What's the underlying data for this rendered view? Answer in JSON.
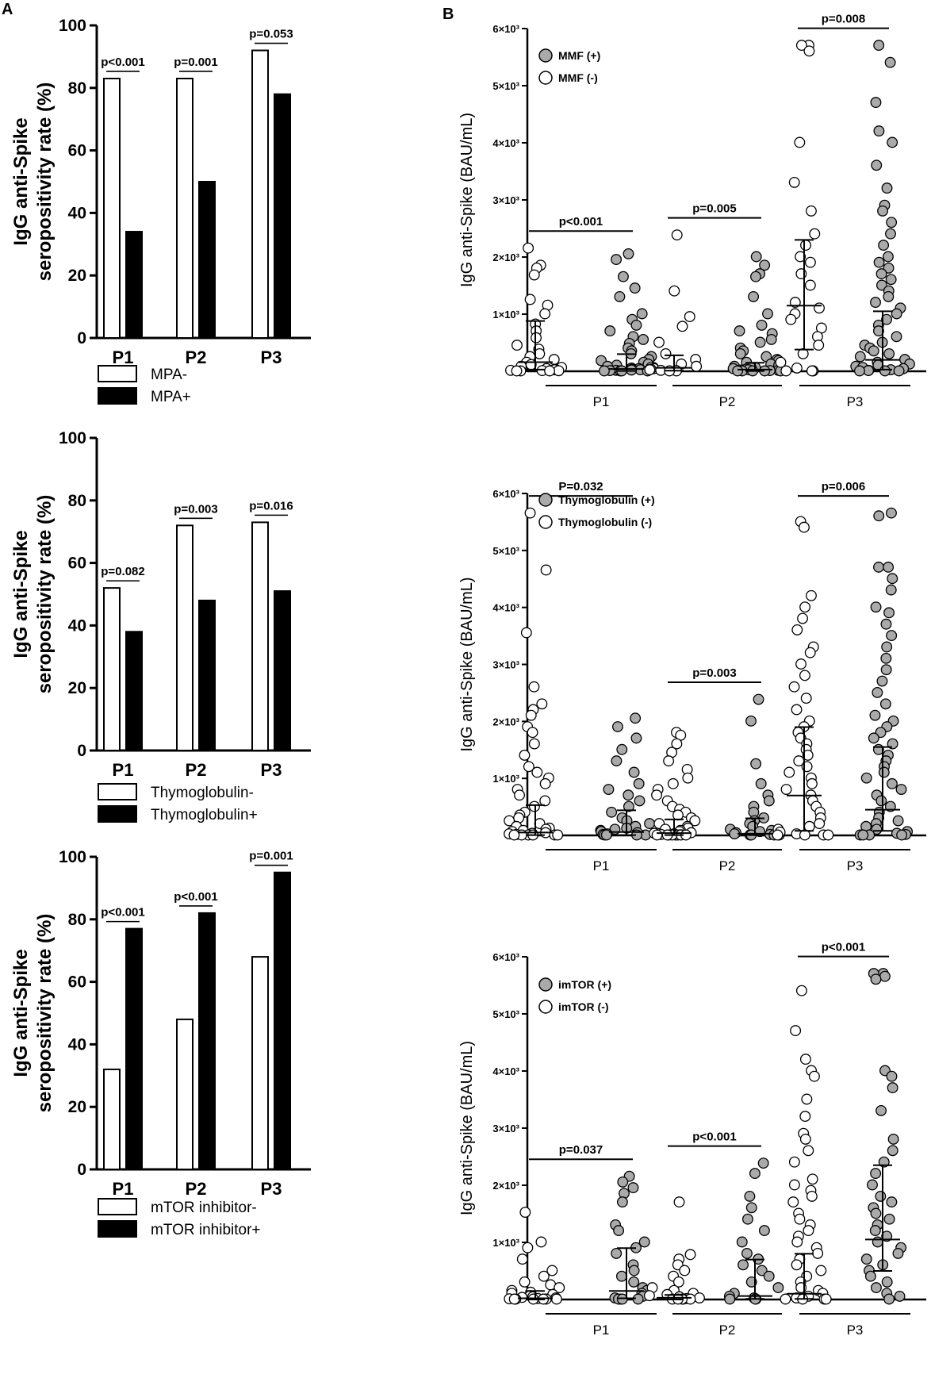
{
  "panel_labels": {
    "a": "A",
    "b": "B"
  },
  "chart_data": [
    {
      "type": "bar",
      "panel": "A",
      "ylabel_line1": "IgG anti-Spike",
      "ylabel_line2": "seropositivity rate (%)",
      "categories": [
        "P1",
        "P2",
        "P3"
      ],
      "yticks": [
        "0",
        "20",
        "40",
        "60",
        "80",
        "100"
      ],
      "ylim": [
        0,
        100
      ],
      "series": [
        {
          "name": "MPA-",
          "color": "#ffffff",
          "values": [
            83,
            83,
            92
          ]
        },
        {
          "name": "MPA+",
          "color": "#000000",
          "values": [
            34,
            50,
            78
          ]
        }
      ],
      "pvalues": [
        "p<0.001",
        "p=0.001",
        "p=0.053"
      ],
      "legend": [
        "MPA-",
        "MPA+"
      ]
    },
    {
      "type": "bar",
      "panel": "A",
      "ylabel_line1": "IgG anti-Spike",
      "ylabel_line2": "seropositivity rate (%)",
      "categories": [
        "P1",
        "P2",
        "P3"
      ],
      "yticks": [
        "0",
        "20",
        "40",
        "60",
        "80",
        "100"
      ],
      "ylim": [
        0,
        100
      ],
      "series": [
        {
          "name": "Thymoglobulin-",
          "color": "#ffffff",
          "values": [
            52,
            72,
            73
          ]
        },
        {
          "name": "Thymoglobulin+",
          "color": "#000000",
          "values": [
            38,
            48,
            51
          ]
        }
      ],
      "pvalues": [
        "p=0.082",
        "p=0.003",
        "p=0.016"
      ],
      "legend": [
        "Thymoglobulin-",
        "Thymoglobulin+"
      ]
    },
    {
      "type": "bar",
      "panel": "A",
      "ylabel_line1": "IgG anti-Spike",
      "ylabel_line2": "seropositivity rate (%)",
      "categories": [
        "P1",
        "P2",
        "P3"
      ],
      "yticks": [
        "0",
        "20",
        "40",
        "60",
        "80",
        "100"
      ],
      "ylim": [
        0,
        100
      ],
      "series": [
        {
          "name": "mTOR inhibitor-",
          "color": "#ffffff",
          "values": [
            32,
            48,
            68
          ]
        },
        {
          "name": "mTOR inhibitor+",
          "color": "#000000",
          "values": [
            77,
            82,
            95
          ]
        }
      ],
      "pvalues": [
        "p<0.001",
        "p<0.001",
        "p=0.001"
      ],
      "legend": [
        "mTOR inhibitor-",
        "mTOR inhibitor+"
      ]
    },
    {
      "type": "scatter",
      "panel": "B",
      "ylabel": "IgG anti-Spike (BAU/mL)",
      "ylim": [
        0,
        6000
      ],
      "yticks": [
        "0",
        "1×10³",
        "2×10³",
        "3×10³",
        "4×10³",
        "5×10³",
        "6×10³"
      ],
      "categories": [
        "P1",
        "P2",
        "P3"
      ],
      "legend": [
        {
          "label": "MMF (+)",
          "fill": "#aaaaaa"
        },
        {
          "label": "MMF (-)",
          "fill": "#ffffff"
        }
      ],
      "pvalues": [
        "p<0.001",
        "p=0.005",
        "p=0.008"
      ],
      "groups": [
        {
          "category": "P1",
          "fill": "#ffffff",
          "median": 160,
          "iqr": [
            30,
            880
          ],
          "values": [
            2150,
            1850,
            1800,
            1680,
            1250,
            1150,
            1000,
            820,
            700,
            580,
            450,
            380,
            300,
            250,
            200,
            150,
            110,
            80,
            60,
            40,
            30,
            20,
            10,
            5,
            3,
            0,
            0,
            0
          ]
        },
        {
          "category": "P1",
          "fill": "#aaaaaa",
          "median": 40,
          "iqr": [
            5,
            300
          ],
          "values": [
            2050,
            1950,
            1650,
            1450,
            1300,
            1000,
            900,
            800,
            700,
            600,
            550,
            480,
            400,
            350,
            300,
            250,
            200,
            180,
            150,
            120,
            100,
            80,
            60,
            50,
            40,
            30,
            20,
            15,
            10,
            5,
            0,
            0,
            0,
            0
          ]
        },
        {
          "category": "P2",
          "fill": "#ffffff",
          "median": 60,
          "iqr": [
            10,
            280
          ],
          "values": [
            2380,
            1400,
            950,
            780,
            500,
            300,
            200,
            120,
            80,
            60,
            40,
            30,
            20,
            10,
            5,
            0,
            0
          ]
        },
        {
          "category": "P2",
          "fill": "#aaaaaa",
          "median": 30,
          "iqr": [
            5,
            150
          ],
          "values": [
            2000,
            1850,
            1700,
            1650,
            1300,
            1000,
            800,
            700,
            650,
            550,
            500,
            400,
            350,
            300,
            250,
            200,
            180,
            150,
            120,
            100,
            80,
            60,
            50,
            40,
            30,
            20,
            15,
            10,
            5,
            0,
            0,
            0,
            0,
            0
          ]
        },
        {
          "category": "P3",
          "fill": "#ffffff",
          "median": 1150,
          "iqr": [
            380,
            2300
          ],
          "values": [
            5700,
            5700,
            5600,
            4000,
            3300,
            2800,
            2400,
            2200,
            2000,
            1900,
            1700,
            1500,
            1200,
            1100,
            1000,
            900,
            750,
            600,
            450,
            300,
            150,
            50,
            0,
            0,
            0
          ]
        },
        {
          "category": "P3",
          "fill": "#aaaaaa",
          "median": 200,
          "iqr": [
            30,
            1050
          ],
          "values": [
            5700,
            5400,
            4700,
            4200,
            4000,
            3600,
            3200,
            2900,
            2800,
            2600,
            2400,
            2200,
            2000,
            1900,
            1800,
            1700,
            1600,
            1500,
            1400,
            1300,
            1200,
            1100,
            1000,
            900,
            800,
            700,
            600,
            500,
            450,
            400,
            350,
            300,
            250,
            200,
            150,
            120,
            100,
            80,
            60,
            40,
            20,
            10,
            5,
            0,
            0,
            0
          ]
        }
      ]
    },
    {
      "type": "scatter",
      "panel": "B",
      "ylabel": "IgG anti-Spike (BAU/mL)",
      "ylim": [
        0,
        6000
      ],
      "yticks": [
        "0",
        "1×10³",
        "2×10³",
        "3×10³",
        "4×10³",
        "5×10³",
        "6×10³"
      ],
      "categories": [
        "P1",
        "P2",
        "P3"
      ],
      "legend": [
        {
          "label": "Thymoglobulin (+)",
          "fill": "#aaaaaa"
        },
        {
          "label": "Thymoglobulin (-)",
          "fill": "#ffffff"
        }
      ],
      "pvalues": [
        "P=0.032",
        "p=0.003",
        "p=0.006"
      ],
      "groups": [
        {
          "category": "P1",
          "fill": "#ffffff",
          "median": 50,
          "iqr": [
            5,
            530
          ],
          "values": [
            5650,
            4650,
            3550,
            2600,
            2300,
            2200,
            2100,
            1900,
            1800,
            1600,
            1400,
            1200,
            1100,
            1000,
            900,
            800,
            700,
            600,
            500,
            400,
            350,
            300,
            250,
            200,
            150,
            120,
            100,
            80,
            60,
            40,
            30,
            20,
            10,
            5,
            0,
            0,
            0,
            0,
            0,
            0
          ]
        },
        {
          "category": "P1",
          "fill": "#aaaaaa",
          "median": 60,
          "iqr": [
            5,
            440
          ],
          "values": [
            2050,
            1900,
            1700,
            1500,
            1300,
            1100,
            900,
            800,
            700,
            600,
            500,
            400,
            300,
            250,
            200,
            150,
            120,
            100,
            80,
            60,
            40,
            20,
            10,
            0,
            0,
            0,
            0
          ]
        },
        {
          "category": "P2",
          "fill": "#ffffff",
          "median": 40,
          "iqr": [
            5,
            280
          ],
          "values": [
            1800,
            1750,
            1600,
            1450,
            1300,
            1150,
            1000,
            900,
            800,
            700,
            600,
            500,
            450,
            400,
            350,
            300,
            250,
            200,
            150,
            120,
            100,
            80,
            60,
            40,
            30,
            20,
            10,
            5,
            0,
            0,
            0,
            0,
            0,
            0,
            0,
            0
          ]
        },
        {
          "category": "P2",
          "fill": "#aaaaaa",
          "median": 30,
          "iqr": [
            5,
            300
          ],
          "values": [
            2380,
            2000,
            1250,
            900,
            700,
            600,
            500,
            400,
            300,
            250,
            200,
            150,
            100,
            80,
            60,
            40,
            20,
            10,
            0,
            0,
            0,
            0
          ]
        },
        {
          "category": "P3",
          "fill": "#ffffff",
          "median": 700,
          "iqr": [
            80,
            1900
          ],
          "values": [
            5500,
            5400,
            4200,
            4000,
            3800,
            3600,
            3300,
            3200,
            3000,
            2800,
            2600,
            2400,
            2200,
            2000,
            1900,
            1800,
            1700,
            1600,
            1500,
            1400,
            1300,
            1200,
            1100,
            1000,
            900,
            800,
            700,
            600,
            500,
            400,
            300,
            200,
            150,
            100,
            50,
            20,
            0,
            0,
            0,
            0
          ]
        },
        {
          "category": "P3",
          "fill": "#aaaaaa",
          "median": 450,
          "iqr": [
            80,
            1550
          ],
          "values": [
            5650,
            5600,
            4700,
            4700,
            4500,
            4300,
            4000,
            3900,
            3700,
            3500,
            3300,
            3100,
            2900,
            2700,
            2500,
            2300,
            2100,
            2000,
            1900,
            1800,
            1700,
            1600,
            1500,
            1400,
            1300,
            1200,
            1100,
            1000,
            900,
            800,
            700,
            600,
            500,
            400,
            300,
            250,
            200,
            150,
            100,
            60,
            30,
            10,
            0,
            0,
            0,
            0
          ]
        }
      ]
    },
    {
      "type": "scatter",
      "panel": "B",
      "ylabel": "IgG anti-Spike (BAU/mL)",
      "ylim": [
        0,
        6000
      ],
      "yticks": [
        "0",
        "1×10³",
        "2×10³",
        "3×10³",
        "4×10³",
        "5×10³",
        "6×10³"
      ],
      "categories": [
        "P1",
        "P2",
        "P3"
      ],
      "legend": [
        {
          "label": "imTOR (+)",
          "fill": "#aaaaaa"
        },
        {
          "label": "imTOR (-)",
          "fill": "#ffffff"
        }
      ],
      "pvalues": [
        "p=0.037",
        "p<0.001",
        "p<0.001"
      ],
      "groups": [
        {
          "category": "P1",
          "fill": "#ffffff",
          "median": 20,
          "iqr": [
            0,
            150
          ],
          "values": [
            1520,
            1000,
            900,
            700,
            500,
            400,
            300,
            250,
            200,
            150,
            120,
            100,
            80,
            60,
            40,
            30,
            20,
            10,
            5,
            0,
            0,
            0,
            0,
            0,
            0
          ]
        },
        {
          "category": "P1",
          "fill": "#aaaaaa",
          "median": 150,
          "iqr": [
            20,
            900
          ],
          "values": [
            2150,
            2050,
            1950,
            1850,
            1700,
            1300,
            1200,
            1000,
            900,
            800,
            600,
            500,
            400,
            300,
            200,
            150,
            100,
            50,
            20,
            0,
            0,
            0,
            0
          ]
        },
        {
          "category": "P2",
          "fill": "#ffffff",
          "median": 30,
          "iqr": [
            0,
            80
          ],
          "values": [
            1700,
            780,
            700,
            600,
            500,
            400,
            300,
            200,
            150,
            100,
            80,
            60,
            40,
            20,
            10,
            0,
            0,
            0,
            0,
            0
          ]
        },
        {
          "category": "P2",
          "fill": "#aaaaaa",
          "median": 60,
          "iqr": [
            10,
            700
          ],
          "values": [
            2380,
            2200,
            1800,
            1600,
            1400,
            1200,
            1000,
            800,
            700,
            600,
            500,
            400,
            300,
            200,
            100,
            50,
            20,
            0,
            0,
            0
          ]
        },
        {
          "category": "P3",
          "fill": "#ffffff",
          "median": 100,
          "iqr": [
            10,
            800
          ],
          "values": [
            5400,
            4700,
            4200,
            4000,
            3900,
            3500,
            3200,
            2900,
            2800,
            2600,
            2400,
            2100,
            2000,
            1900,
            1800,
            1700,
            1500,
            1400,
            1300,
            1200,
            1100,
            1000,
            900,
            800,
            700,
            600,
            500,
            400,
            300,
            200,
            150,
            100,
            50,
            20,
            0,
            0,
            0,
            0
          ]
        },
        {
          "category": "P3",
          "fill": "#aaaaaa",
          "median": 1050,
          "iqr": [
            500,
            2350
          ],
          "values": [
            5700,
            5700,
            5650,
            5600,
            4000,
            3900,
            3700,
            3300,
            2800,
            2600,
            2400,
            2200,
            2000,
            1800,
            1700,
            1600,
            1500,
            1400,
            1300,
            1200,
            1100,
            1000,
            900,
            800,
            700,
            600,
            500,
            400,
            300,
            200,
            100,
            50,
            0
          ]
        }
      ]
    }
  ]
}
